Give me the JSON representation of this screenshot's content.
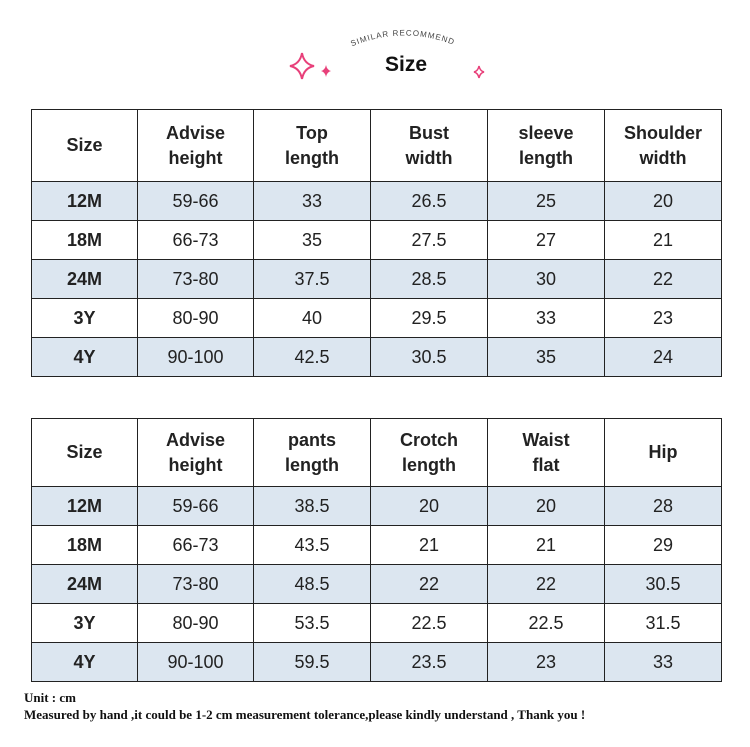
{
  "header": {
    "arc_text": "SIMILAR RECOMMEND",
    "title": "Size"
  },
  "tables": [
    {
      "columns": [
        "Size",
        "Advise height",
        "Top length",
        "Bust width",
        "sleeve length",
        "Shoulder width"
      ],
      "rows": [
        [
          "12M",
          "59-66",
          "33",
          "26.5",
          "25",
          "20"
        ],
        [
          "18M",
          "66-73",
          "35",
          "27.5",
          "27",
          "21"
        ],
        [
          "24M",
          "73-80",
          "37.5",
          "28.5",
          "30",
          "22"
        ],
        [
          "3Y",
          "80-90",
          "40",
          "29.5",
          "33",
          "23"
        ],
        [
          "4Y",
          "90-100",
          "42.5",
          "30.5",
          "35",
          "24"
        ]
      ]
    },
    {
      "columns": [
        "Size",
        "Advise height",
        "pants length",
        "Crotch length",
        "Waist flat",
        "Hip"
      ],
      "rows": [
        [
          "12M",
          "59-66",
          "38.5",
          "20",
          "20",
          "28"
        ],
        [
          "18M",
          "66-73",
          "43.5",
          "21",
          "21",
          "29"
        ],
        [
          "24M",
          "73-80",
          "48.5",
          "22",
          "22",
          "30.5"
        ],
        [
          "3Y",
          "80-90",
          "53.5",
          "22.5",
          "22.5",
          "31.5"
        ],
        [
          "4Y",
          "90-100",
          "59.5",
          "23.5",
          "23",
          "33"
        ]
      ]
    }
  ],
  "footer": [
    "Unit : cm",
    "Measured by hand ,it could be 1-2 cm measurement tolerance,please kindly understand , Thank you !"
  ]
}
